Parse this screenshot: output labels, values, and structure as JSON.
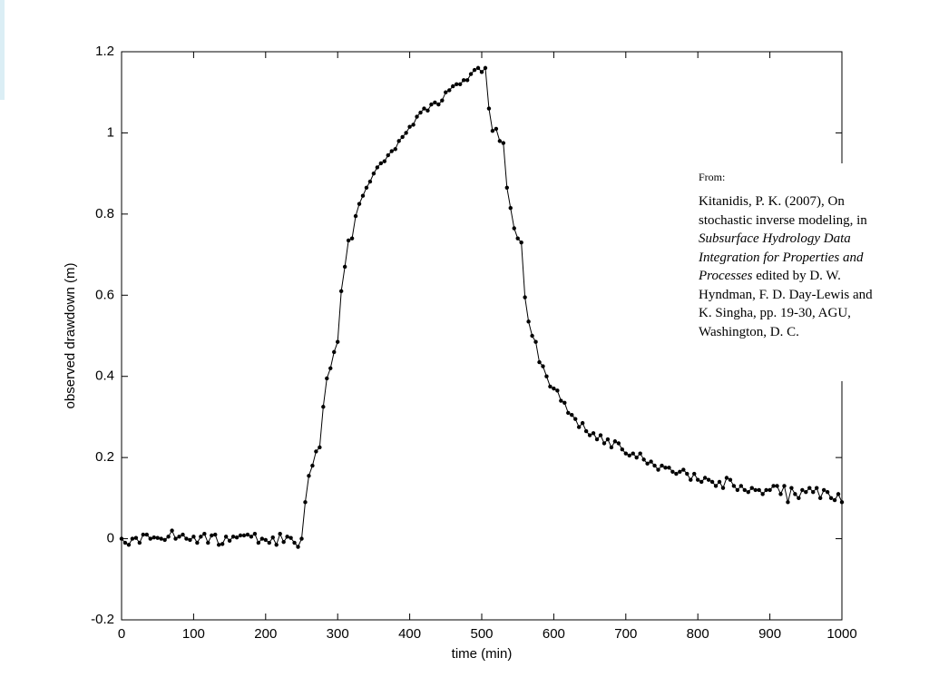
{
  "chart_data": {
    "type": "line",
    "xlabel": "time (min)",
    "ylabel": "observed drawdown (m)",
    "xlim": [
      0,
      1000
    ],
    "ylim": [
      -0.2,
      1.2
    ],
    "xticks": [
      0,
      100,
      200,
      300,
      400,
      500,
      600,
      700,
      800,
      900,
      1000
    ],
    "yticks": [
      -0.2,
      0,
      0.2,
      0.4,
      0.6,
      0.8,
      1,
      1.2
    ],
    "color": "#000000",
    "markers": true,
    "grid": false,
    "x": [
      0,
      5,
      10,
      15,
      20,
      25,
      30,
      35,
      40,
      45,
      50,
      55,
      60,
      65,
      70,
      75,
      80,
      85,
      90,
      95,
      100,
      105,
      110,
      115,
      120,
      125,
      130,
      135,
      140,
      145,
      150,
      155,
      160,
      165,
      170,
      175,
      180,
      185,
      190,
      195,
      200,
      205,
      210,
      215,
      220,
      225,
      230,
      235,
      240,
      245,
      250,
      255,
      260,
      265,
      270,
      275,
      280,
      285,
      290,
      295,
      300,
      305,
      310,
      315,
      320,
      325,
      330,
      335,
      340,
      345,
      350,
      355,
      360,
      365,
      370,
      375,
      380,
      385,
      390,
      395,
      400,
      405,
      410,
      415,
      420,
      425,
      430,
      435,
      440,
      445,
      450,
      455,
      460,
      465,
      470,
      475,
      480,
      485,
      490,
      495,
      500,
      505,
      510,
      515,
      520,
      525,
      530,
      535,
      540,
      545,
      550,
      555,
      560,
      565,
      570,
      575,
      580,
      585,
      590,
      595,
      600,
      605,
      610,
      615,
      620,
      625,
      630,
      635,
      640,
      645,
      650,
      655,
      660,
      665,
      670,
      675,
      680,
      685,
      690,
      695,
      700,
      705,
      710,
      715,
      720,
      725,
      730,
      735,
      740,
      745,
      750,
      755,
      760,
      765,
      770,
      775,
      780,
      785,
      790,
      795,
      800,
      805,
      810,
      815,
      820,
      825,
      830,
      835,
      840,
      845,
      850,
      855,
      860,
      865,
      870,
      875,
      880,
      885,
      890,
      895,
      900,
      905,
      910,
      915,
      920,
      925,
      930,
      935,
      940,
      945,
      950,
      955,
      960,
      965,
      970,
      975,
      980,
      985,
      990,
      995,
      1000
    ],
    "values": [
      0,
      -0.01,
      -0.015,
      0,
      0.002,
      -0.01,
      0.01,
      0.01,
      0,
      0.003,
      0.002,
      0,
      -0.003,
      0.005,
      0.02,
      0,
      0.005,
      0.01,
      0,
      -0.003,
      0.005,
      -0.01,
      0.005,
      0.012,
      -0.01,
      0.008,
      0.01,
      -0.015,
      -0.013,
      0.005,
      -0.005,
      0.005,
      0.003,
      0.008,
      0.008,
      0.01,
      0.005,
      0.012,
      -0.01,
      0,
      -0.003,
      -0.01,
      0.003,
      -0.015,
      0.012,
      -0.008,
      0.005,
      0.002,
      -0.01,
      -0.02,
      0,
      0.09,
      0.155,
      0.18,
      0.215,
      0.225,
      0.325,
      0.395,
      0.42,
      0.46,
      0.485,
      0.61,
      0.67,
      0.735,
      0.74,
      0.795,
      0.825,
      0.845,
      0.865,
      0.88,
      0.9,
      0.915,
      0.925,
      0.93,
      0.945,
      0.955,
      0.96,
      0.98,
      0.99,
      1.0,
      1.015,
      1.02,
      1.04,
      1.05,
      1.06,
      1.055,
      1.07,
      1.075,
      1.07,
      1.08,
      1.1,
      1.105,
      1.115,
      1.12,
      1.12,
      1.13,
      1.13,
      1.145,
      1.155,
      1.16,
      1.15,
      1.16,
      1.06,
      1.005,
      1.01,
      0.98,
      0.975,
      0.865,
      0.815,
      0.765,
      0.74,
      0.73,
      0.595,
      0.535,
      0.5,
      0.485,
      0.435,
      0.425,
      0.4,
      0.375,
      0.37,
      0.365,
      0.34,
      0.335,
      0.31,
      0.305,
      0.295,
      0.275,
      0.285,
      0.265,
      0.255,
      0.26,
      0.245,
      0.255,
      0.235,
      0.245,
      0.225,
      0.24,
      0.235,
      0.22,
      0.21,
      0.205,
      0.21,
      0.2,
      0.21,
      0.195,
      0.185,
      0.19,
      0.18,
      0.17,
      0.18,
      0.175,
      0.175,
      0.165,
      0.16,
      0.165,
      0.17,
      0.16,
      0.145,
      0.16,
      0.145,
      0.14,
      0.15,
      0.145,
      0.14,
      0.13,
      0.14,
      0.125,
      0.15,
      0.145,
      0.13,
      0.12,
      0.13,
      0.12,
      0.115,
      0.125,
      0.12,
      0.12,
      0.11,
      0.12,
      0.12,
      0.13,
      0.13,
      0.11,
      0.13,
      0.09,
      0.125,
      0.11,
      0.1,
      0.12,
      0.115,
      0.125,
      0.115,
      0.125,
      0.1,
      0.12,
      0.115,
      0.1,
      0.095,
      0.11,
      0.09
    ],
    "annotation": {
      "header": "From:",
      "parts": [
        {
          "text": "Kitanidis, P. K. (2007), On stochastic inverse modeling, in ",
          "italic": false
        },
        {
          "text": "Subsurface Hydrology Data Integration for Properties and Processes",
          "italic": true
        },
        {
          "text": " edited by D. W. Hyndman, F. D. Day-Lewis and K. Singha, pp. 19-30, AGU, Washington, D. C.",
          "italic": false
        }
      ]
    }
  }
}
